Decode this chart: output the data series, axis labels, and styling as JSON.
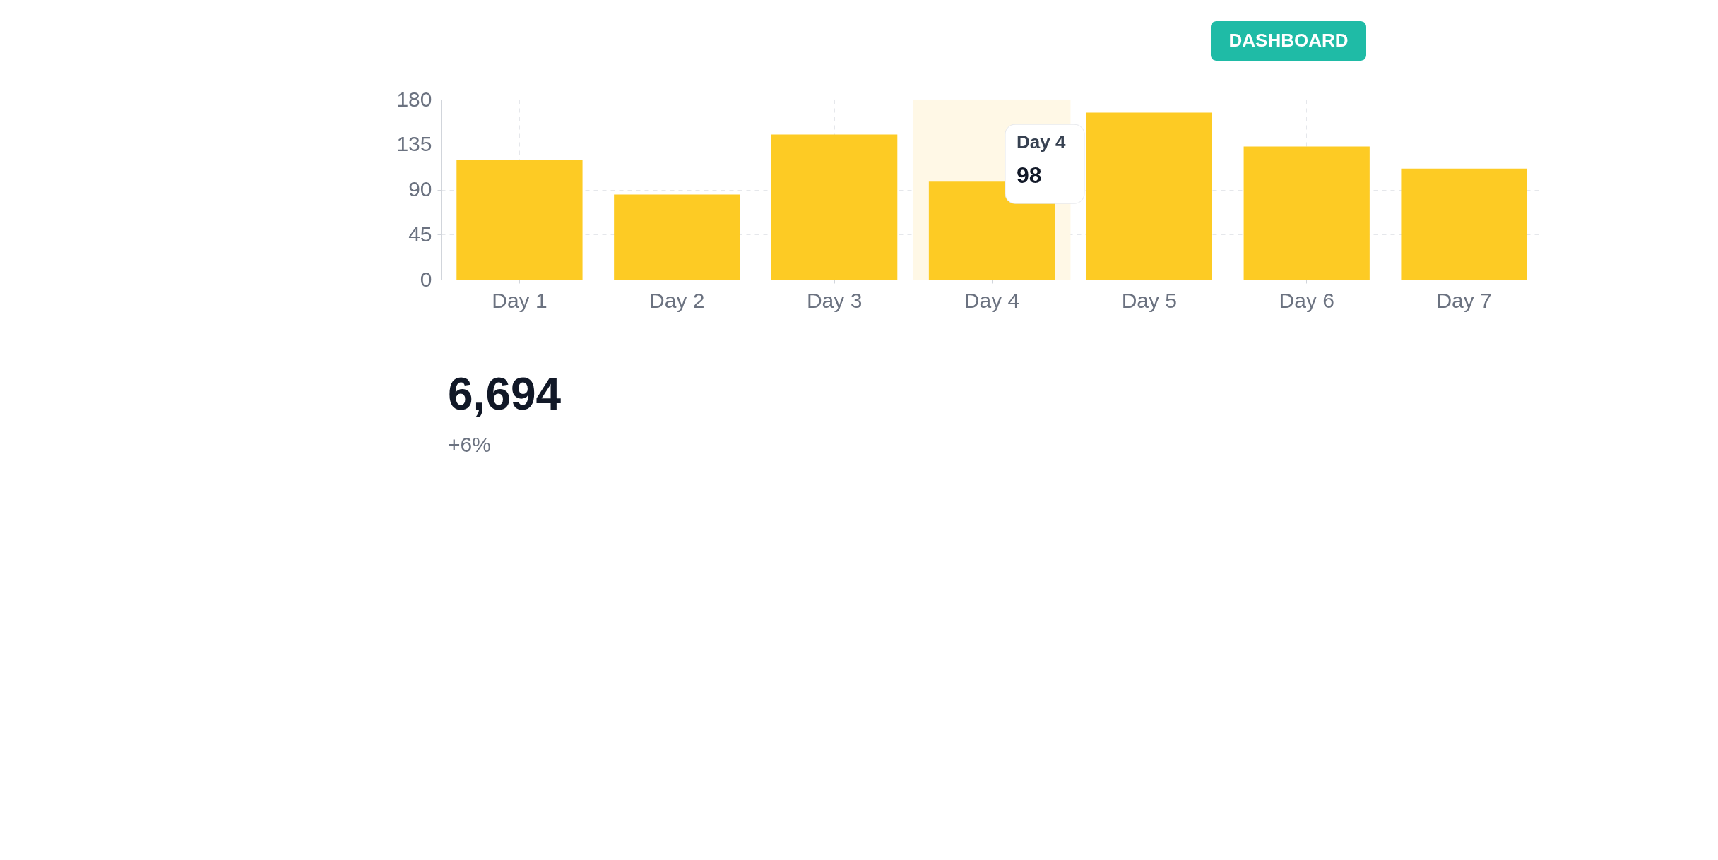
{
  "chart_data": [
    {
      "type": "bar",
      "categories": [
        "Day 1",
        "Day 2",
        "Day 3",
        "Day 4",
        "Day 5",
        "Day 6",
        "Day 7"
      ],
      "values": [
        120,
        85,
        145,
        98,
        167,
        133,
        111
      ],
      "value_labels": [
        null,
        null,
        null,
        "98",
        null,
        null,
        null
      ],
      "color": "#fdcb24",
      "ylim": [
        0,
        180
      ],
      "yticks": [
        0,
        45,
        90,
        135,
        180
      ],
      "grid": true,
      "bands": [
        {
          "axis": "x",
          "from": "Day 4",
          "to": "Day 4",
          "color": "#fff8e6"
        }
      ],
      "annotations": [
        "DASHBOARD"
      ]
    },
    {
      "type": "other",
      "annotations": [
        "6,694",
        "+6%"
      ]
    }
  ]
}
